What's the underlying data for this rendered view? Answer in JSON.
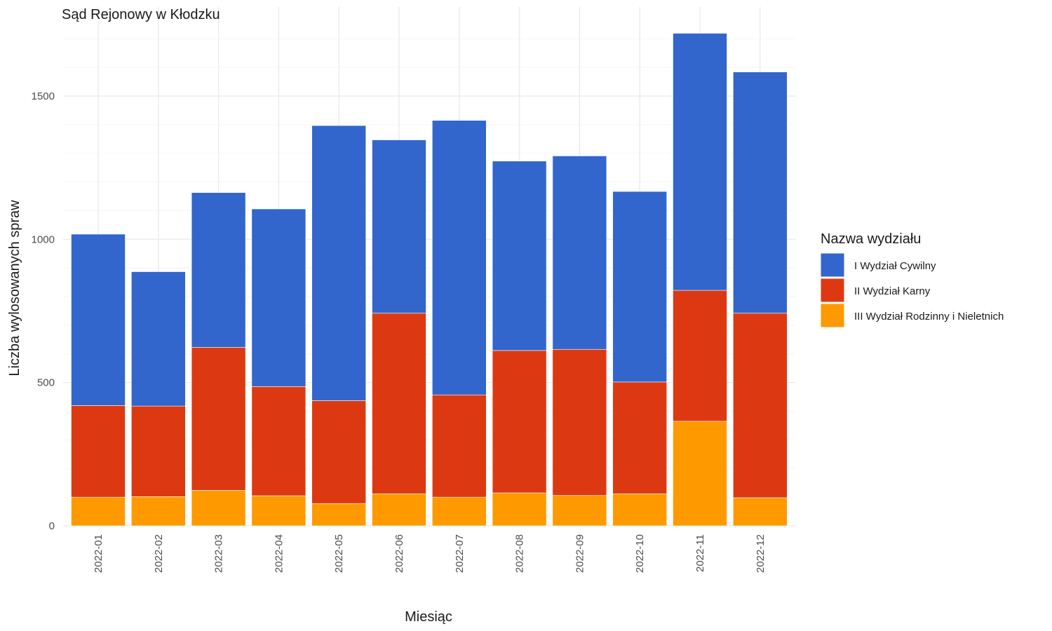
{
  "chart_data": {
    "type": "bar",
    "stacked": true,
    "title": "Sąd Rejonowy w Kłodzku",
    "xlabel": "Miesiąc",
    "ylabel": "Liczba wylosowanych spraw",
    "ylim": [
      0,
      1750
    ],
    "yticks": [
      0,
      500,
      1000,
      1500
    ],
    "ytick_labels": [
      "0",
      "500",
      "1000",
      "1500"
    ],
    "grid": true,
    "legend_title": "Nazwa wydziału",
    "legend_position": "right",
    "categories": [
      "2022-01",
      "2022-02",
      "2022-03",
      "2022-04",
      "2022-05",
      "2022-06",
      "2022-07",
      "2022-08",
      "2022-09",
      "2022-10",
      "2022-11",
      "2022-12"
    ],
    "series": [
      {
        "name": "III Wydział Rodzinny i Nieletnich",
        "color": "#ff9900",
        "values": [
          100,
          102,
          124,
          105,
          78,
          112,
          100,
          115,
          106,
          112,
          365,
          98
        ]
      },
      {
        "name": "II Wydział Karny",
        "color": "#dc3912",
        "values": [
          320,
          316,
          499,
          381,
          359,
          630,
          357,
          497,
          510,
          390,
          457,
          644
        ]
      },
      {
        "name": "I Wydział Cywilny",
        "color": "#3366cc",
        "values": [
          598,
          469,
          540,
          620,
          960,
          605,
          958,
          661,
          675,
          665,
          897,
          842
        ]
      }
    ],
    "legend_order": [
      "I Wydział Cywilny",
      "II Wydział Karny",
      "III Wydział Rodzinny i Nieletnich"
    ]
  }
}
